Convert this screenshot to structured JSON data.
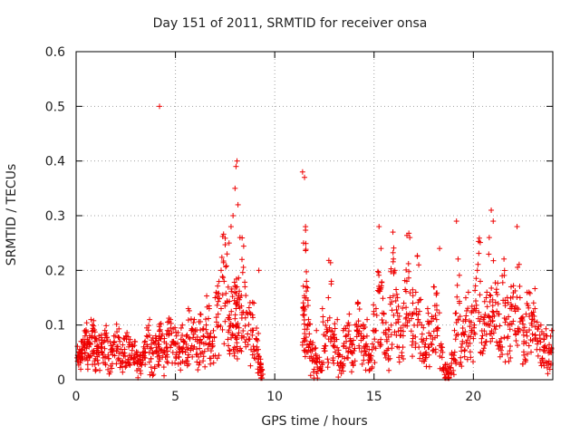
{
  "chart_data": {
    "type": "scatter",
    "title": "Day 151 of 2011, SRMTID for receiver onsa",
    "xlabel": "GPS time / hours",
    "ylabel": "SRMTID / TECUs",
    "xlim": [
      0,
      24
    ],
    "ylim": [
      0,
      0.6
    ],
    "xticks": [
      0,
      5,
      10,
      15,
      20
    ],
    "yticks": [
      0,
      0.1,
      0.2,
      0.3,
      0.4,
      0.5,
      0.6
    ],
    "xtick_labels": [
      "0",
      "5",
      "10",
      "15",
      "20"
    ],
    "ytick_labels": [
      "0",
      "0.1",
      "0.2",
      "0.3",
      "0.4",
      "0.5",
      "0.6"
    ],
    "grid": true,
    "marker": "+",
    "marker_color": "#ee0000",
    "gap_hours": [
      9.5,
      11.3
    ],
    "series": [
      {
        "name": "SRMTID",
        "points": [
          [
            0.05,
            0.04
          ],
          [
            0.15,
            0.05
          ],
          [
            0.25,
            0.07
          ],
          [
            0.35,
            0.06
          ],
          [
            0.45,
            0.08
          ],
          [
            0.55,
            0.07
          ],
          [
            0.65,
            0.06
          ],
          [
            0.75,
            0.11
          ],
          [
            0.85,
            0.09
          ],
          [
            0.95,
            0.07
          ],
          [
            1.05,
            0.05
          ],
          [
            1.15,
            0.08
          ],
          [
            1.3,
            0.06
          ],
          [
            1.45,
            0.09
          ],
          [
            1.6,
            0.07
          ],
          [
            1.75,
            0.05
          ],
          [
            1.9,
            0.08
          ],
          [
            2.05,
            0.06
          ],
          [
            2.2,
            0.07
          ],
          [
            2.35,
            0.05
          ],
          [
            2.5,
            0.08
          ],
          [
            2.65,
            0.06
          ],
          [
            2.8,
            0.04
          ],
          [
            2.95,
            0.07
          ],
          [
            3.1,
            0.05
          ],
          [
            3.25,
            0.03
          ],
          [
            3.4,
            0.06
          ],
          [
            3.55,
            0.08
          ],
          [
            3.7,
            0.11
          ],
          [
            3.85,
            0.05
          ],
          [
            4.0,
            0.07
          ],
          [
            4.15,
            0.06
          ],
          [
            4.2,
            0.5
          ],
          [
            4.3,
            0.08
          ],
          [
            4.45,
            0.05
          ],
          [
            4.6,
            0.09
          ],
          [
            4.75,
            0.11
          ],
          [
            4.9,
            0.07
          ],
          [
            5.05,
            0.08
          ],
          [
            5.2,
            0.06
          ],
          [
            5.35,
            0.1
          ],
          [
            5.5,
            0.05
          ],
          [
            5.65,
            0.13
          ],
          [
            5.8,
            0.09
          ],
          [
            5.95,
            0.11
          ],
          [
            6.1,
            0.07
          ],
          [
            6.25,
            0.12
          ],
          [
            6.4,
            0.08
          ],
          [
            6.55,
            0.1
          ],
          [
            6.7,
            0.13
          ],
          [
            6.85,
            0.06
          ],
          [
            7.0,
            0.15
          ],
          [
            7.15,
            0.12
          ],
          [
            7.3,
            0.2
          ],
          [
            7.45,
            0.18
          ],
          [
            7.6,
            0.23
          ],
          [
            7.7,
            0.25
          ],
          [
            7.8,
            0.28
          ],
          [
            7.9,
            0.3
          ],
          [
            8.0,
            0.35
          ],
          [
            8.05,
            0.39
          ],
          [
            8.1,
            0.4
          ],
          [
            8.15,
            0.32
          ],
          [
            8.25,
            0.26
          ],
          [
            8.35,
            0.22
          ],
          [
            8.5,
            0.17
          ],
          [
            8.65,
            0.12
          ],
          [
            8.8,
            0.09
          ],
          [
            8.95,
            0.14
          ],
          [
            9.1,
            0.06
          ],
          [
            9.2,
            0.2
          ],
          [
            9.3,
            0.03
          ],
          [
            9.4,
            0.01
          ],
          [
            11.4,
            0.38
          ],
          [
            11.45,
            0.25
          ],
          [
            11.5,
            0.37
          ],
          [
            11.55,
            0.28
          ],
          [
            11.6,
            0.18
          ],
          [
            11.7,
            0.11
          ],
          [
            11.8,
            0.07
          ],
          [
            11.95,
            0.04
          ],
          [
            12.1,
            0.09
          ],
          [
            12.25,
            0.02
          ],
          [
            12.4,
            0.13
          ],
          [
            12.55,
            0.08
          ],
          [
            12.7,
            0.15
          ],
          [
            12.85,
            0.18
          ],
          [
            13.0,
            0.06
          ],
          [
            13.15,
            0.11
          ],
          [
            13.3,
            0.03
          ],
          [
            13.45,
            0.09
          ],
          [
            13.6,
            0.07
          ],
          [
            13.75,
            0.12
          ],
          [
            13.9,
            0.05
          ],
          [
            14.05,
            0.1
          ],
          [
            14.2,
            0.14
          ],
          [
            14.35,
            0.08
          ],
          [
            14.5,
            0.06
          ],
          [
            14.65,
            0.11
          ],
          [
            14.8,
            0.04
          ],
          [
            14.95,
            0.09
          ],
          [
            15.1,
            0.13
          ],
          [
            15.25,
            0.28
          ],
          [
            15.35,
            0.24
          ],
          [
            15.5,
            0.12
          ],
          [
            15.65,
            0.07
          ],
          [
            15.8,
            0.15
          ],
          [
            15.95,
            0.27
          ],
          [
            16.05,
            0.2
          ],
          [
            16.2,
            0.11
          ],
          [
            16.35,
            0.09
          ],
          [
            16.5,
            0.14
          ],
          [
            16.65,
            0.18
          ],
          [
            16.8,
            0.26
          ],
          [
            16.95,
            0.12
          ],
          [
            17.1,
            0.16
          ],
          [
            17.25,
            0.21
          ],
          [
            17.4,
            0.1
          ],
          [
            17.55,
            0.06
          ],
          [
            17.7,
            0.13
          ],
          [
            17.85,
            0.08
          ],
          [
            18.0,
            0.17
          ],
          [
            18.15,
            0.11
          ],
          [
            18.3,
            0.24
          ],
          [
            18.45,
            0.05
          ],
          [
            18.6,
            0.02
          ],
          [
            18.75,
            0.01
          ],
          [
            18.9,
            0.03
          ],
          [
            19.05,
            0.09
          ],
          [
            19.15,
            0.29
          ],
          [
            19.3,
            0.14
          ],
          [
            19.45,
            0.07
          ],
          [
            19.6,
            0.11
          ],
          [
            19.75,
            0.16
          ],
          [
            19.9,
            0.09
          ],
          [
            20.05,
            0.13
          ],
          [
            20.2,
            0.2
          ],
          [
            20.35,
            0.18
          ],
          [
            20.5,
            0.11
          ],
          [
            20.65,
            0.15
          ],
          [
            20.8,
            0.26
          ],
          [
            20.9,
            0.31
          ],
          [
            21.0,
            0.29
          ],
          [
            21.15,
            0.16
          ],
          [
            21.3,
            0.12
          ],
          [
            21.45,
            0.19
          ],
          [
            21.6,
            0.14
          ],
          [
            21.75,
            0.1
          ],
          [
            21.9,
            0.17
          ],
          [
            22.05,
            0.13
          ],
          [
            22.2,
            0.28
          ],
          [
            22.35,
            0.15
          ],
          [
            22.5,
            0.09
          ],
          [
            22.65,
            0.12
          ],
          [
            22.8,
            0.16
          ],
          [
            22.95,
            0.11
          ],
          [
            23.1,
            0.13
          ],
          [
            23.25,
            0.07
          ],
          [
            23.4,
            0.1
          ],
          [
            23.55,
            0.06
          ],
          [
            23.7,
            0.08
          ],
          [
            23.85,
            0.05
          ],
          [
            23.95,
            0.09
          ]
        ]
      }
    ]
  }
}
